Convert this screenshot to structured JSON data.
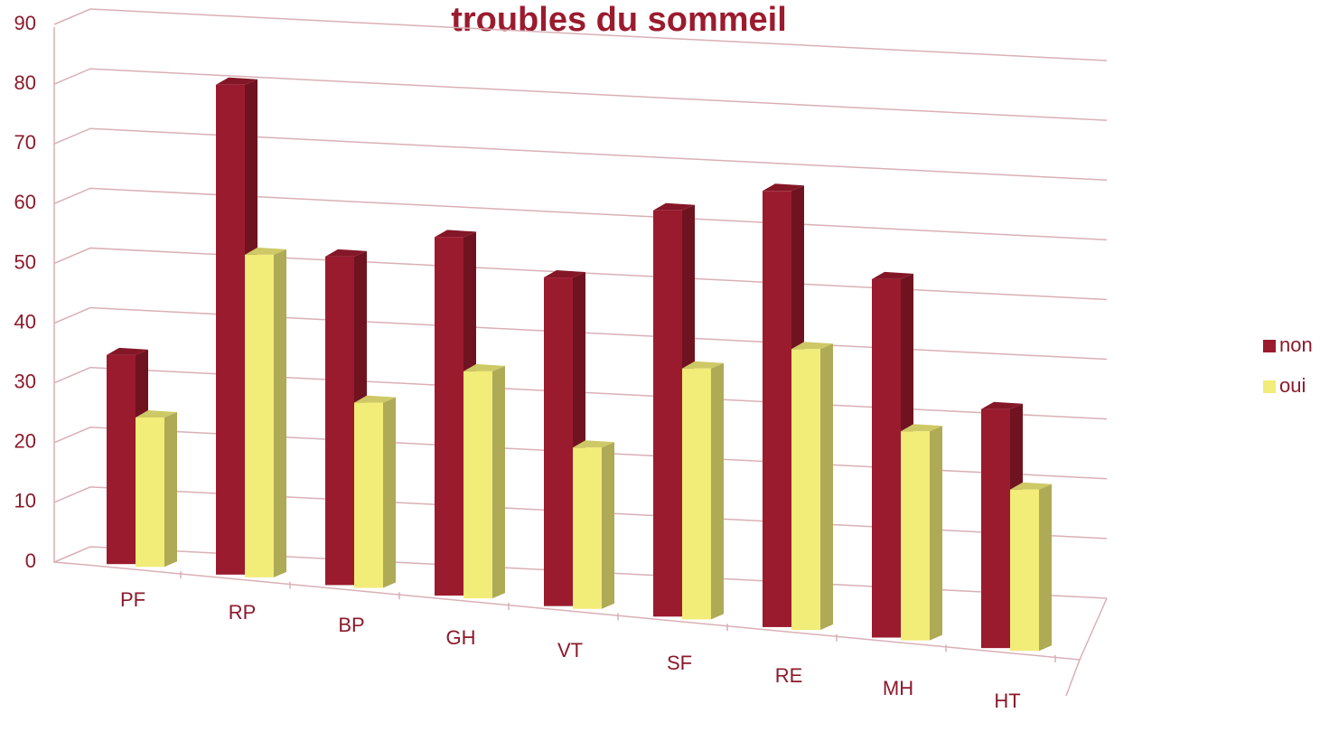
{
  "chart_data": {
    "type": "bar3d",
    "title": "troubles  du sommeil",
    "categories": [
      "PF",
      "RP",
      "BP",
      "GH",
      "VT",
      "SF",
      "RE",
      "MH",
      "HT"
    ],
    "series": [
      {
        "name": "non",
        "color": "#9b1b2e",
        "values": [
          35,
          82,
          55,
          60,
          55,
          68,
          73,
          60,
          40
        ]
      },
      {
        "name": "oui",
        "color": "#f2ec78",
        "values": [
          25,
          54,
          31,
          38,
          27,
          42,
          47,
          35,
          27
        ]
      }
    ],
    "ylim": [
      0,
      90
    ],
    "yticks": [
      0,
      10,
      20,
      30,
      40,
      50,
      60,
      70,
      80,
      90
    ],
    "grid": true,
    "legend": "right"
  }
}
